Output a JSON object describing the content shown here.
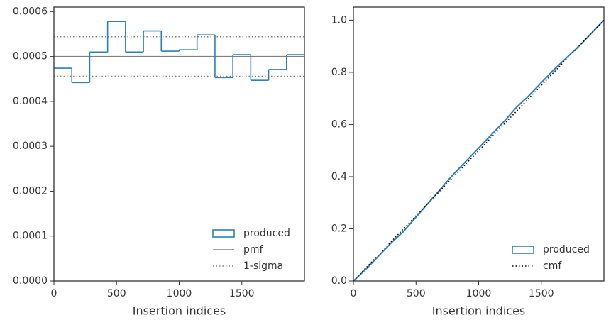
{
  "chart_data": [
    {
      "type": "histogram",
      "xlabel": "Insertion indices",
      "name": "produced",
      "color": "#2c7fb8",
      "bins": [
        0,
        142.9,
        285.7,
        428.6,
        571.4,
        714.3,
        857.1,
        1000,
        1142.9,
        1285.7,
        1428.6,
        1571.4,
        1714.3,
        1857.1,
        2000
      ],
      "values": [
        0.000474,
        0.000442,
        0.00051,
        0.000578,
        0.00051,
        0.000557,
        0.000512,
        0.000515,
        0.000548,
        0.000453,
        0.000504,
        0.000447,
        0.000471,
        0.000504
      ],
      "reference_lines": [
        {
          "name": "pmf",
          "values": [
            0.0005
          ],
          "color": "#808080",
          "style": "solid"
        },
        {
          "name": "1-sigma",
          "values": [
            0.000544,
            0.000456
          ],
          "color": "#808080",
          "style": "dotted"
        }
      ],
      "xlim": [
        0,
        2000
      ],
      "ylim": [
        0,
        0.00061
      ],
      "xticks": [
        0,
        500,
        1000,
        1500
      ],
      "yticks": [
        {
          "value": 0,
          "label": "0.0000"
        },
        {
          "value": 0.0001,
          "label": "0.0001"
        },
        {
          "value": 0.0002,
          "label": "0.0002"
        },
        {
          "value": 0.0003,
          "label": "0.0003"
        },
        {
          "value": 0.0004,
          "label": "0.0004"
        },
        {
          "value": 0.0005,
          "label": "0.0005"
        },
        {
          "value": 0.0006,
          "label": "0.0006"
        }
      ],
      "legend": "lower right"
    },
    {
      "type": "line",
      "xlabel": "Insertion indices",
      "series": [
        {
          "name": "produced",
          "color": "#2c7fb8",
          "style": "solid",
          "legend_marker": "patch",
          "x": [
            0,
            100,
            200,
            300,
            400,
            500,
            600,
            700,
            800,
            900,
            1000,
            1100,
            1200,
            1300,
            1400,
            1500,
            1600,
            1700,
            1800,
            1900,
            2000
          ],
          "values": [
            0,
            0.045,
            0.095,
            0.145,
            0.19,
            0.245,
            0.3,
            0.355,
            0.41,
            0.46,
            0.51,
            0.56,
            0.61,
            0.665,
            0.71,
            0.76,
            0.81,
            0.855,
            0.9,
            0.95,
            1.0
          ]
        },
        {
          "name": "cmf",
          "color": "#000000",
          "style": "dotted",
          "legend_marker": "line",
          "x": [
            0,
            2000
          ],
          "values": [
            0,
            1
          ]
        }
      ],
      "xlim": [
        0,
        2000
      ],
      "ylim": [
        0,
        1.05
      ],
      "xticks": [
        0,
        500,
        1000,
        1500
      ],
      "yticks": [
        {
          "value": 0,
          "label": "0.0"
        },
        0.2,
        0.4,
        0.6,
        0.8,
        {
          "value": 1,
          "label": "1.0"
        }
      ],
      "legend": "lower right"
    }
  ]
}
